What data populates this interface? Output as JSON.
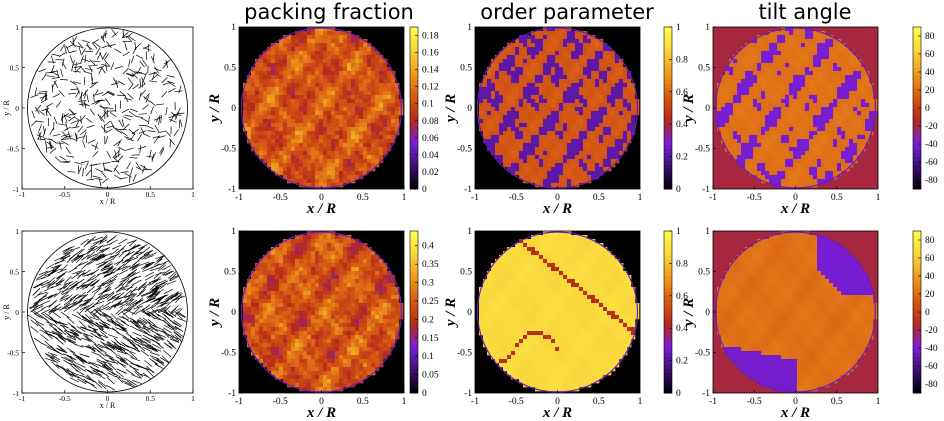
{
  "column_titles": [
    "packing fraction",
    "order parameter",
    "tilt angle"
  ],
  "chart_data": [
    {
      "type": "scatter",
      "row": 1,
      "panel": "rod snapshot",
      "xlabel": "x / R",
      "ylabel": "y / R",
      "xlim": [
        -1,
        1
      ],
      "ylim": [
        -1,
        1
      ],
      "xticks": [
        "-1",
        "-0.5",
        "0",
        "0.5",
        "1"
      ],
      "yticks": [
        "-1",
        "-0.5",
        "0",
        "0.5",
        "1"
      ]
    },
    {
      "type": "heatmap",
      "row": 1,
      "title": "packing fraction",
      "xlabel": "x / R",
      "ylabel": "y / R",
      "xlim": [
        -1,
        1
      ],
      "ylim": [
        -1,
        1
      ],
      "xticks": [
        "-1",
        "-0.5",
        "0",
        "0.5",
        "1"
      ],
      "yticks": [
        "-1",
        "-0.5",
        "0",
        "0.5",
        "1"
      ],
      "colorbar_range": [
        0,
        0.19
      ],
      "colorbar_ticks": [
        "0",
        "0.02",
        "0.04",
        "0.06",
        "0.08",
        "0.1",
        "0.12",
        "0.14",
        "0.16",
        "0.18"
      ]
    },
    {
      "type": "heatmap",
      "row": 1,
      "title": "order parameter",
      "xlabel": "x / R",
      "ylabel": "y / R",
      "xlim": [
        -1,
        1
      ],
      "ylim": [
        -1,
        1
      ],
      "xticks": [
        "-1",
        "-0.5",
        "0",
        "0.5",
        "1"
      ],
      "yticks": [
        "-1",
        "-0.5",
        "0",
        "0.5",
        "1"
      ],
      "colorbar_range": [
        0,
        1
      ],
      "colorbar_ticks": [
        "0",
        "0.2",
        "0.4",
        "0.6",
        "0.8",
        "1"
      ]
    },
    {
      "type": "heatmap",
      "row": 1,
      "title": "tilt angle",
      "xlabel": "x / R",
      "ylabel": "y / R",
      "xlim": [
        -1,
        1
      ],
      "ylim": [
        -1,
        1
      ],
      "xticks": [
        "-1",
        "-0.5",
        "0",
        "0.5",
        "1"
      ],
      "yticks": [
        "-1",
        "-0.5",
        "0",
        "0.5",
        "1"
      ],
      "colorbar_range": [
        -90,
        90
      ],
      "colorbar_ticks": [
        "-80",
        "-60",
        "-40",
        "-20",
        "0",
        "20",
        "40",
        "60",
        "80"
      ]
    },
    {
      "type": "scatter",
      "row": 2,
      "panel": "rod snapshot",
      "xlabel": "x / R",
      "ylabel": "y / R",
      "xlim": [
        -1,
        1
      ],
      "ylim": [
        -1,
        1
      ],
      "xticks": [
        "-1",
        "-0.5",
        "0",
        "0.5",
        "1"
      ],
      "yticks": [
        "-1",
        "-0.5",
        "0",
        "0.5",
        "1"
      ]
    },
    {
      "type": "heatmap",
      "row": 2,
      "title": "packing fraction",
      "xlabel": "x / R",
      "ylabel": "y / R",
      "xlim": [
        -1,
        1
      ],
      "ylim": [
        -1,
        1
      ],
      "xticks": [
        "-1",
        "-0.5",
        "0",
        "0.5",
        "1"
      ],
      "yticks": [
        "-1",
        "-0.5",
        "0",
        "0.5",
        "1"
      ],
      "colorbar_range": [
        0,
        0.44
      ],
      "colorbar_ticks": [
        "0",
        "0.05",
        "0.1",
        "0.15",
        "0.2",
        "0.25",
        "0.3",
        "0.35",
        "0.4"
      ]
    },
    {
      "type": "heatmap",
      "row": 2,
      "title": "order parameter",
      "xlabel": "x / R",
      "ylabel": "y / R",
      "xlim": [
        -1,
        1
      ],
      "ylim": [
        -1,
        1
      ],
      "xticks": [
        "-1",
        "-0.5",
        "0",
        "0.5",
        "1"
      ],
      "yticks": [
        "-1",
        "-0.5",
        "0",
        "0.5",
        "1"
      ],
      "colorbar_range": [
        0,
        1
      ],
      "colorbar_ticks": [
        "0",
        "0.2",
        "0.4",
        "0.6",
        "0.8",
        "1"
      ]
    },
    {
      "type": "heatmap",
      "row": 2,
      "title": "tilt angle",
      "xlabel": "x / R",
      "ylabel": "y / R",
      "xlim": [
        -1,
        1
      ],
      "ylim": [
        -1,
        1
      ],
      "xticks": [
        "-1",
        "-0.5",
        "0",
        "0.5",
        "1"
      ],
      "yticks": [
        "-1",
        "-0.5",
        "0",
        "0.5",
        "1"
      ],
      "colorbar_range": [
        -90,
        90
      ],
      "colorbar_ticks": [
        "-80",
        "-60",
        "-40",
        "-20",
        "0",
        "20",
        "40",
        "60",
        "80"
      ]
    }
  ],
  "colormap": [
    "#000000",
    "#3b0f70",
    "#7a1fd8",
    "#b4291a",
    "#d65a14",
    "#ef9a1c",
    "#f9d43a",
    "#ffff50"
  ]
}
